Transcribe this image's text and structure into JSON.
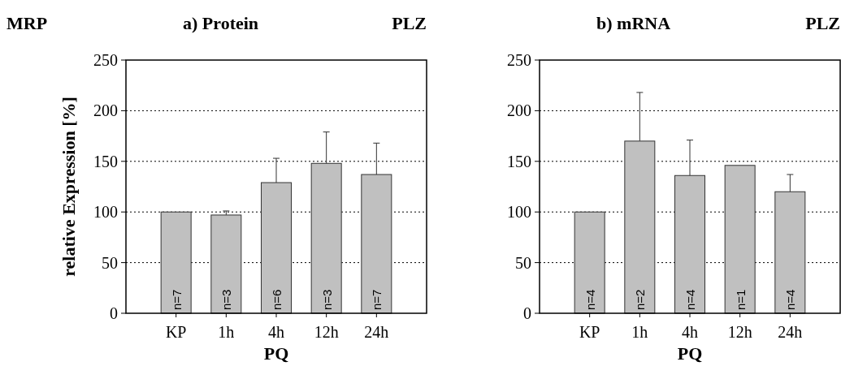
{
  "chart_data": [
    {
      "type": "bar",
      "title": "a)  Protein",
      "xlabel": "PQ",
      "ylabel": "relative Expression [%]",
      "categories": [
        "KP",
        "1h",
        "4h",
        "12h",
        "24h"
      ],
      "values": [
        100,
        97,
        129,
        148,
        137
      ],
      "errors": [
        null,
        4,
        24,
        31,
        31
      ],
      "color": "#c0c0c0",
      "ylim": [
        0,
        250
      ],
      "yticks": [
        0,
        50,
        100,
        150,
        200,
        250
      ],
      "grid": "y",
      "annotations": [
        "MRP",
        "PLZ",
        {
          "text": "n=7",
          "x": "KP",
          "y": 0
        },
        {
          "text": "n=3",
          "x": "1h",
          "y": 0
        },
        {
          "text": "n=6",
          "x": "4h",
          "y": 0
        },
        {
          "text": "n=3",
          "x": "12h",
          "y": 0
        },
        {
          "text": "n=7",
          "x": "24h",
          "y": 0
        }
      ]
    },
    {
      "type": "bar",
      "title": "b)  mRNA",
      "xlabel": "PQ",
      "categories": [
        "KP",
        "1h",
        "4h",
        "12h",
        "24h"
      ],
      "values": [
        100,
        170,
        136,
        146,
        120
      ],
      "errors": [
        null,
        48,
        35,
        null,
        17
      ],
      "color": "#c0c0c0",
      "ylim": [
        0,
        250
      ],
      "yticks": [
        0,
        50,
        100,
        150,
        200,
        250
      ],
      "grid": "y",
      "annotations": [
        "PLZ",
        {
          "text": "n=4",
          "x": "KP",
          "y": 0
        },
        {
          "text": "n=2",
          "x": "1h",
          "y": 0
        },
        {
          "text": "n=4",
          "x": "4h",
          "y": 0
        },
        {
          "text": "n=1",
          "x": "12h",
          "y": 0
        },
        {
          "text": "n=4",
          "x": "24h",
          "y": 0
        }
      ]
    }
  ]
}
